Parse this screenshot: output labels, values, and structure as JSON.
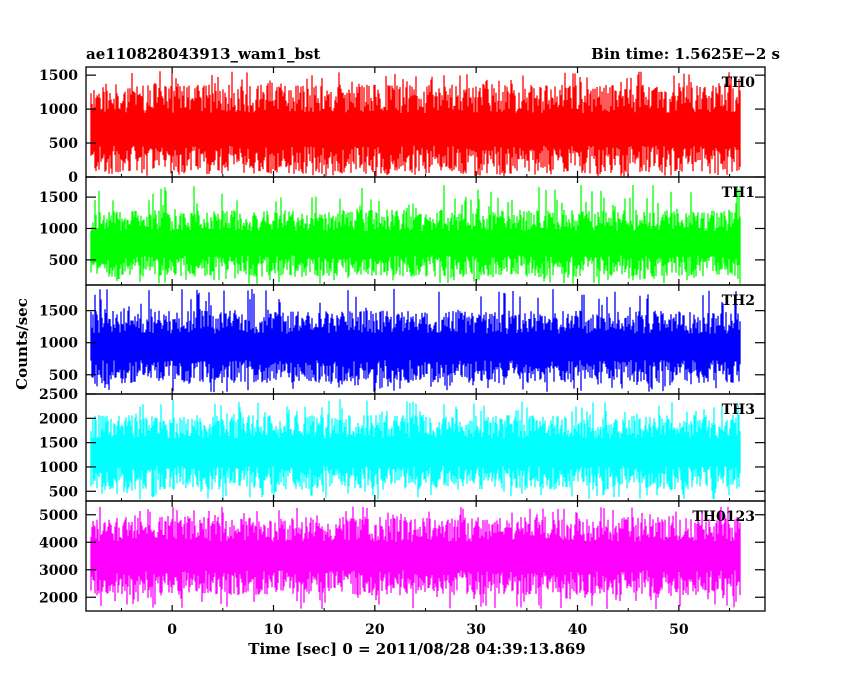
{
  "header": {
    "title": "ae110828043913_wam1_bst",
    "bin_time": "Bin time: 1.5625E−2 s"
  },
  "axes": {
    "xlabel": "Time [sec] 0 = 2011/08/28 04:39:13.869",
    "ylabel": "Counts/sec"
  },
  "chart_data": {
    "type": "line",
    "title": "ae110828043913_wam1_bst",
    "subtitle": "Bin time: 1.5625E−2 s",
    "xlabel": "Time [sec] 0 = 2011/08/28 04:39:13.869",
    "ylabel": "Counts/sec",
    "xlim": [
      -8.5,
      58.5
    ],
    "x_start": -8.0,
    "x_end": 56.0,
    "bin_time": 0.015625,
    "x_ticks": [
      0,
      10,
      20,
      30,
      40,
      50
    ],
    "grid": false,
    "panels": [
      {
        "name": "TH0",
        "color": "#ff0000",
        "ylim": [
          0,
          1620
        ],
        "ticks": [
          0,
          500,
          1000,
          1500
        ],
        "tick_labels": [
          "0",
          "500",
          "1000",
          "1500"
        ],
        "low": 100,
        "high": 1300,
        "peak": 1560
      },
      {
        "name": "TH1",
        "color": "#00ff00",
        "ylim": [
          100,
          1820
        ],
        "ticks": [
          500,
          1000,
          1500
        ],
        "tick_labels": [
          "500",
          "1000",
          "1500"
        ],
        "low": 280,
        "high": 1250,
        "peak": 1700
      },
      {
        "name": "TH2",
        "color": "#0000ff",
        "ylim": [
          200,
          1900
        ],
        "ticks": [
          500,
          1000,
          1500
        ],
        "tick_labels": [
          "500",
          "1000",
          "1500"
        ],
        "low": 420,
        "high": 1450,
        "peak": 1850
      },
      {
        "name": "TH3",
        "color": "#00ffff",
        "ylim": [
          300,
          2500
        ],
        "ticks": [
          500,
          1000,
          1500,
          2000,
          2500
        ],
        "tick_labels": [
          "500",
          "1000",
          "1500",
          "2000",
          "2500"
        ],
        "low": 600,
        "high": 2000,
        "peak": 2400
      },
      {
        "name": "TH0123",
        "color": "#ff00ff",
        "ylim": [
          1500,
          5500
        ],
        "ticks": [
          2000,
          3000,
          4000,
          5000
        ],
        "tick_labels": [
          "2000",
          "3000",
          "4000",
          "5000"
        ],
        "low": 2200,
        "high": 4800,
        "peak": 5300
      }
    ]
  }
}
